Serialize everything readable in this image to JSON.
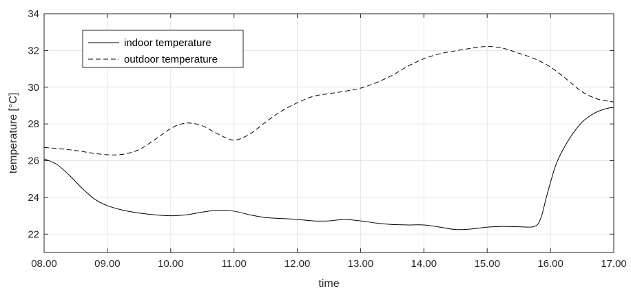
{
  "chart_data": {
    "type": "line",
    "xlabel": "time",
    "ylabel": "temperature [°C]",
    "xlim": [
      8,
      17
    ],
    "ylim": [
      21,
      34
    ],
    "x_ticks": [
      {
        "value": 8,
        "label": "08.00"
      },
      {
        "value": 9,
        "label": "09.00"
      },
      {
        "value": 10,
        "label": "10.00"
      },
      {
        "value": 11,
        "label": "11.00"
      },
      {
        "value": 12,
        "label": "12.00"
      },
      {
        "value": 13,
        "label": "13.00"
      },
      {
        "value": 14,
        "label": "14.00"
      },
      {
        "value": 15,
        "label": "15.00"
      },
      {
        "value": 16,
        "label": "16.00"
      },
      {
        "value": 17,
        "label": "17.00"
      }
    ],
    "y_ticks": [
      {
        "value": 22,
        "label": "22"
      },
      {
        "value": 24,
        "label": "24"
      },
      {
        "value": 26,
        "label": "26"
      },
      {
        "value": 28,
        "label": "28"
      },
      {
        "value": 30,
        "label": "30"
      },
      {
        "value": 32,
        "label": "32"
      },
      {
        "value": 34,
        "label": "34"
      }
    ],
    "grid": true,
    "legend_position": "top-left",
    "series": [
      {
        "name": "indoor temperature",
        "style": "solid",
        "color": "#000000",
        "x": [
          8.0,
          8.2,
          8.4,
          8.6,
          8.8,
          9.0,
          9.25,
          9.5,
          9.75,
          10.0,
          10.25,
          10.5,
          10.75,
          11.0,
          11.25,
          11.5,
          11.75,
          12.0,
          12.25,
          12.5,
          12.75,
          13.0,
          13.25,
          13.5,
          13.75,
          14.0,
          14.25,
          14.5,
          14.75,
          15.0,
          15.25,
          15.5,
          15.75,
          15.85,
          15.95,
          16.1,
          16.3,
          16.5,
          16.7,
          16.9,
          17.0
        ],
        "y": [
          26.1,
          25.8,
          25.2,
          24.5,
          23.9,
          23.55,
          23.3,
          23.15,
          23.05,
          23.0,
          23.05,
          23.2,
          23.3,
          23.25,
          23.05,
          22.9,
          22.85,
          22.8,
          22.72,
          22.72,
          22.8,
          22.72,
          22.6,
          22.52,
          22.5,
          22.5,
          22.38,
          22.25,
          22.28,
          22.38,
          22.42,
          22.4,
          22.42,
          22.9,
          24.2,
          25.9,
          27.2,
          28.1,
          28.6,
          28.85,
          28.9
        ]
      },
      {
        "name": "outdoor temperature",
        "style": "dashed",
        "color": "#000000",
        "x": [
          8.0,
          8.25,
          8.5,
          8.75,
          9.0,
          9.25,
          9.5,
          9.75,
          10.0,
          10.15,
          10.3,
          10.5,
          10.75,
          11.0,
          11.25,
          11.5,
          11.75,
          12.0,
          12.25,
          12.5,
          12.75,
          13.0,
          13.25,
          13.5,
          13.75,
          14.0,
          14.25,
          14.5,
          14.75,
          15.0,
          15.25,
          15.5,
          15.75,
          16.0,
          16.25,
          16.5,
          16.75,
          17.0
        ],
        "y": [
          26.72,
          26.65,
          26.55,
          26.42,
          26.32,
          26.35,
          26.6,
          27.15,
          27.75,
          27.98,
          28.05,
          27.9,
          27.45,
          27.12,
          27.45,
          28.1,
          28.7,
          29.15,
          29.5,
          29.65,
          29.78,
          29.95,
          30.25,
          30.65,
          31.15,
          31.55,
          31.82,
          31.98,
          32.12,
          32.22,
          32.12,
          31.85,
          31.55,
          31.1,
          30.45,
          29.75,
          29.35,
          29.2
        ]
      }
    ]
  }
}
